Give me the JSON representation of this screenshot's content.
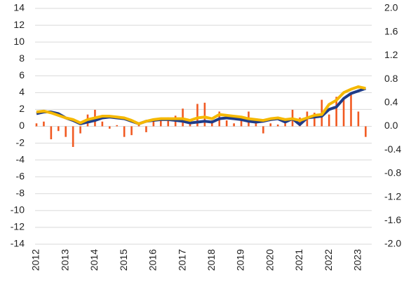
{
  "chart_data": {
    "type": "combo",
    "categories": [
      "2012",
      null,
      null,
      null,
      "2013",
      null,
      null,
      null,
      "2014",
      null,
      null,
      null,
      "2015",
      null,
      null,
      null,
      "2016",
      null,
      null,
      null,
      "2017",
      null,
      null,
      null,
      "2018",
      null,
      null,
      null,
      "2019",
      null,
      null,
      null,
      "2020",
      null,
      null,
      null,
      "2021",
      null,
      null,
      null,
      "2022",
      null,
      null,
      null,
      "2023",
      null
    ],
    "series": [
      {
        "type": "bar",
        "axis": "y2",
        "color": "#f15a22",
        "values": [
          0.05,
          0.08,
          -0.22,
          -0.08,
          -0.18,
          -0.35,
          -0.12,
          0.2,
          0.28,
          0.08,
          -0.04,
          0.02,
          -0.18,
          -0.15,
          0.03,
          -0.1,
          0.1,
          0.1,
          0.15,
          0.18,
          0.3,
          0.1,
          0.38,
          0.4,
          0.1,
          0.25,
          0.1,
          0.05,
          0.12,
          0.25,
          0.1,
          -0.12,
          0.05,
          0.03,
          0.05,
          0.28,
          0.15,
          0.25,
          0.23,
          0.45,
          0.2,
          0.5,
          0.45,
          0.55,
          0.25,
          -0.18
        ]
      },
      {
        "type": "line",
        "color": "#1f3c88",
        "values": [
          1.5,
          1.7,
          1.7,
          1.5,
          1.0,
          0.7,
          0.3,
          0.5,
          0.7,
          1.0,
          1.1,
          1.0,
          0.9,
          0.6,
          0.3,
          0.6,
          0.7,
          0.8,
          0.8,
          0.7,
          0.6,
          0.4,
          0.5,
          0.6,
          0.5,
          0.9,
          1.0,
          0.9,
          0.8,
          0.6,
          0.5,
          0.6,
          0.8,
          0.9,
          0.5,
          0.9,
          0.2,
          1.0,
          1.1,
          1.2,
          2.0,
          2.3,
          3.3,
          3.9,
          4.2,
          4.5
        ]
      },
      {
        "type": "line",
        "color": "#f5b800",
        "values": [
          1.7,
          1.8,
          1.6,
          1.3,
          1.0,
          0.8,
          0.4,
          0.8,
          1.0,
          1.2,
          1.2,
          1.1,
          1.0,
          0.7,
          0.3,
          0.6,
          0.8,
          0.9,
          0.9,
          0.9,
          0.9,
          0.7,
          1.0,
          1.1,
          0.9,
          1.4,
          1.3,
          1.2,
          1.1,
          0.9,
          0.8,
          0.7,
          0.9,
          1.0,
          0.8,
          0.9,
          0.7,
          1.0,
          1.3,
          1.4,
          2.6,
          3.1,
          4.0,
          4.4,
          4.7,
          4.5
        ]
      }
    ],
    "ylim": [
      -14,
      14
    ],
    "yticks": [
      -14,
      -12,
      -10,
      -8,
      -6,
      -4,
      -2,
      0,
      2,
      4,
      6,
      8,
      10,
      12,
      14
    ],
    "y2lim": [
      -2,
      2
    ],
    "y2ticks": [
      {
        "value": -2,
        "label": "-2.0"
      },
      {
        "value": -1.6,
        "label": "-1.6"
      },
      -1.2,
      -0.8,
      -0.4,
      {
        "value": 0,
        "label": "0.0"
      },
      0.4,
      0.8,
      1.2,
      1.6,
      {
        "value": 2,
        "label": "2.0"
      }
    ],
    "grid": true
  }
}
